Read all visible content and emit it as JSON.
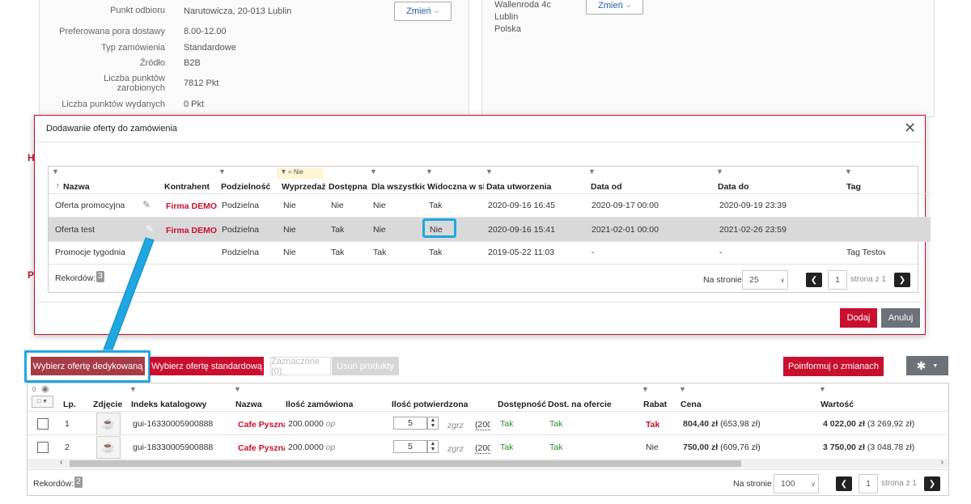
{
  "order_info": {
    "fields": [
      {
        "label": "Punkt odbioru",
        "value": "Narutowicza, 20-013 Lublin"
      },
      {
        "label": "Preferowana pora dostawy",
        "value": "8.00-12.00"
      },
      {
        "label": "Typ zamówienia",
        "value": "Standardowe"
      },
      {
        "label": "Źródło",
        "value": "B2B"
      },
      {
        "label": "Liczba punktów zarobionych",
        "value": "7812 Pkt"
      },
      {
        "label": "Liczba punktów wydanych",
        "value": "0 Pkt"
      }
    ],
    "change_label": "Zmień",
    "address_lines": [
      "Wallenroda 4c",
      "Lublin",
      "Polska"
    ],
    "change2_label": "Zmień",
    "side_letters": [
      "H",
      "P"
    ]
  },
  "modal": {
    "title": "Dodawanie oferty do zamówienia",
    "filter_badge": "= Nie",
    "columns": [
      "Nazwa",
      "Kontrahent",
      "Podzielność",
      "Wyprzedaż",
      "Dostępna",
      "Dla wszystkich",
      "Widoczna w sk",
      "Data utworzenia",
      "Data od",
      "Data do",
      "Tag"
    ],
    "rows": [
      {
        "name": "Oferta promocyjna",
        "contractor": "Firma DEMO",
        "divisibility": "Podzielna",
        "sale": "Nie",
        "available": "Nie",
        "for_all": "Nie",
        "visible": "Tak",
        "created": "2020-09-16 16:45",
        "from": "2020-09-17 00:00",
        "to": "2020-09-19 23:39",
        "tag": ""
      },
      {
        "name": "Oferta test",
        "contractor": "Firma DEMO",
        "divisibility": "Podzielna",
        "sale": "Nie",
        "available": "Tak",
        "for_all": "Nie",
        "visible": "Nie",
        "created": "2020-09-16 15:41",
        "from": "2021-02-01 00:00",
        "to": "2021-02-26 23:59",
        "tag": ""
      },
      {
        "name": "Promocje tygodnia",
        "contractor": "",
        "divisibility": "Podzielna",
        "sale": "Nie",
        "available": "Tak",
        "for_all": "Tak",
        "visible": "Tak",
        "created": "2019-05-22 11:03",
        "from": "-",
        "to": "-",
        "tag": "Tag Testowy"
      }
    ],
    "records_label": "Rekordów:",
    "records_count": "3",
    "per_page_label": "Na stronie",
    "per_page": "25",
    "page": "1",
    "page_of": "strona z 1",
    "add_label": "Dodaj",
    "cancel_label": "Anuluj"
  },
  "toolbar": {
    "dedicated_label": "Wybierz ofertę dedykowaną",
    "standard_label": "Wybierz ofertę standardową",
    "selected_label": "Zaznaczone (0)",
    "remove_label": "Usuń produkty",
    "notify_label": "Poinformuj o zmianach",
    "filter_count": "0"
  },
  "products": {
    "columns": [
      "Lp.",
      "Zdjęcie",
      "Indeks katalogowy",
      "Nazwa",
      "Ilość zamówiona",
      "Ilość potwierdzona",
      "Dostępność",
      "Dost. na ofercie",
      "Rabat",
      "Cena",
      "Wartość"
    ],
    "rows": [
      {
        "lp": "1",
        "index": "gui-16330005900888",
        "name": "Cafe Pyszna",
        "qty": "200.0000",
        "unit": "op",
        "confirm": "5",
        "confirm_unit": "zgrz",
        "confirm_paren": "(200",
        "availability": "Tak",
        "offer_avail": "Tak",
        "discount": "Tak",
        "price": "804,40 zł",
        "price_net": "(653,98 zł)",
        "value": "4 022,00 zł",
        "value_net": "(3 269,92 zł)"
      },
      {
        "lp": "2",
        "index": "gui-18330005900888",
        "name": "Cafe Pyszna",
        "qty": "200.0000",
        "unit": "op",
        "confirm": "5",
        "confirm_unit": "zgrz",
        "confirm_paren": "(200",
        "availability": "Tak",
        "offer_avail": "Tak",
        "discount": "Nie",
        "price": "750,00 zł",
        "price_net": "(609,76 zł)",
        "value": "3 750,00 zł",
        "value_net": "(3 048,78 zł)"
      }
    ],
    "records_label": "Rekordów:",
    "records_count": "2",
    "per_page_label": "Na stronie",
    "per_page": "100",
    "page": "1",
    "page_of": "strona z 1"
  },
  "colors": {
    "accent": "#c8102e",
    "highlight": "#1ea7e0",
    "dedicated_btn": "#a63c47"
  }
}
